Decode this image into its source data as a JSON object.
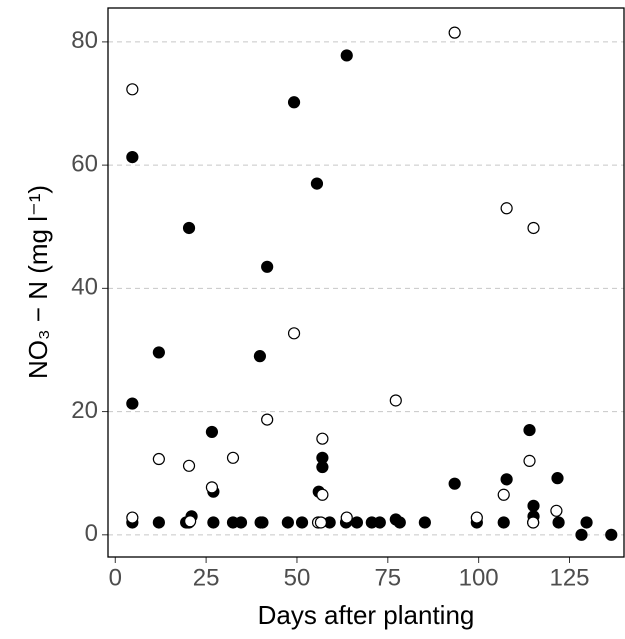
{
  "chart_data": {
    "type": "scatter",
    "x_label": "Days after planting",
    "y_label": "NO₃ − N (mg l⁻¹)",
    "xlim": [
      -2,
      140
    ],
    "xticks": [
      0,
      25,
      50,
      75,
      100,
      125
    ],
    "ylim": [
      -3.6,
      85.5
    ],
    "yticks": [
      0,
      20,
      40,
      60,
      80
    ],
    "grid": true,
    "series": [
      {
        "marker": "filled",
        "color": "#000000",
        "x": [
          4.7,
          4.7,
          4.7,
          12,
          12,
          19.5,
          20,
          21,
          20.3,
          20.3,
          26.6,
          27,
          27,
          32.4,
          34.6,
          39.8,
          40,
          40.5,
          41.8,
          47.5,
          49.2,
          51.4,
          55.5,
          56,
          56,
          57,
          57,
          59,
          63.7,
          63.5,
          66.5,
          70.6,
          72.8,
          77.2,
          78.3,
          85.2,
          93.4,
          99.5,
          107.7,
          106.9,
          114,
          115.1,
          115.1,
          115,
          121.7,
          122,
          128.3,
          129.7,
          136.5
        ],
        "values": [
          61.3,
          21.3,
          2,
          29.6,
          2,
          2,
          2,
          3,
          49.8,
          2,
          16.7,
          7,
          2,
          2,
          2,
          29,
          2,
          2,
          43.5,
          2,
          70.2,
          2,
          57,
          7,
          2,
          12.5,
          11,
          2,
          77.8,
          2,
          2,
          2,
          2,
          2.5,
          2,
          2,
          8.3,
          2,
          9,
          2,
          17,
          4.7,
          3,
          2,
          9.2,
          2,
          0,
          2,
          0
        ]
      },
      {
        "marker": "open",
        "color": "#000000",
        "x": [
          4.7,
          4.7,
          12,
          20.3,
          20.6,
          26.6,
          32.4,
          41.8,
          49.2,
          55.8,
          56.6,
          57,
          57,
          63.7,
          77.2,
          93.4,
          99.5,
          106.9,
          107.7,
          114,
          115.1,
          115,
          121.4
        ],
        "values": [
          72.3,
          2.8,
          12.3,
          11.2,
          2.2,
          7.7,
          12.5,
          18.7,
          32.7,
          2,
          2,
          15.6,
          6.5,
          2.8,
          21.8,
          81.5,
          2.8,
          6.5,
          53,
          12,
          49.8,
          2,
          3.9
        ]
      }
    ]
  }
}
